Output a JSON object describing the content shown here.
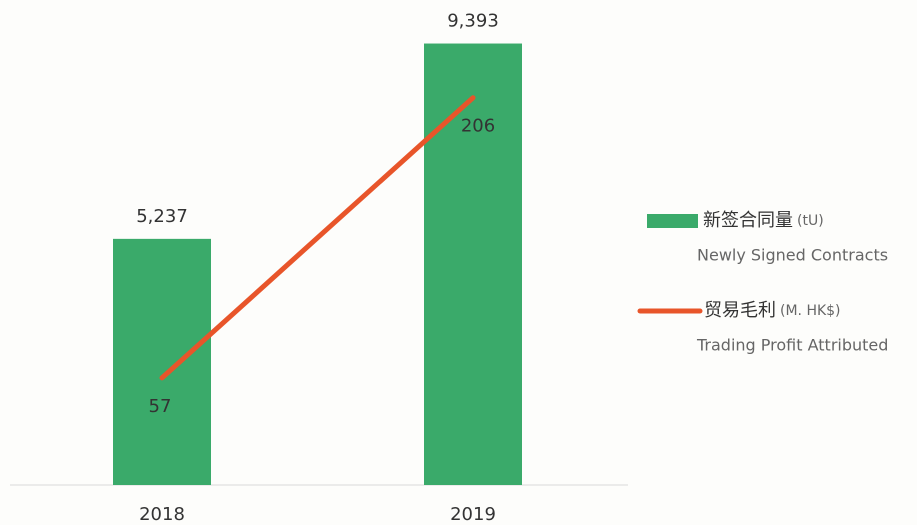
{
  "chart_data": {
    "type": "bar",
    "categories": [
      "2018",
      "2019"
    ],
    "series": [
      {
        "name": "新签合同量",
        "unit": "(tU)",
        "name_en": "Newly Signed Contracts",
        "type": "bar",
        "color": "#3aaa6a",
        "values": [
          5237,
          9393
        ],
        "value_labels": [
          "5,237",
          "9,393"
        ]
      },
      {
        "name": "贸易毛利",
        "unit": "(M. HK$)",
        "name_en": "Trading Profit Attributed",
        "type": "line",
        "axis": "y2",
        "color": "#e8552a",
        "values": [
          57,
          206
        ]
      }
    ],
    "ylim": [
      0,
      10000
    ],
    "y2lim": [
      0,
      250
    ],
    "legend": "right",
    "grid": false
  }
}
